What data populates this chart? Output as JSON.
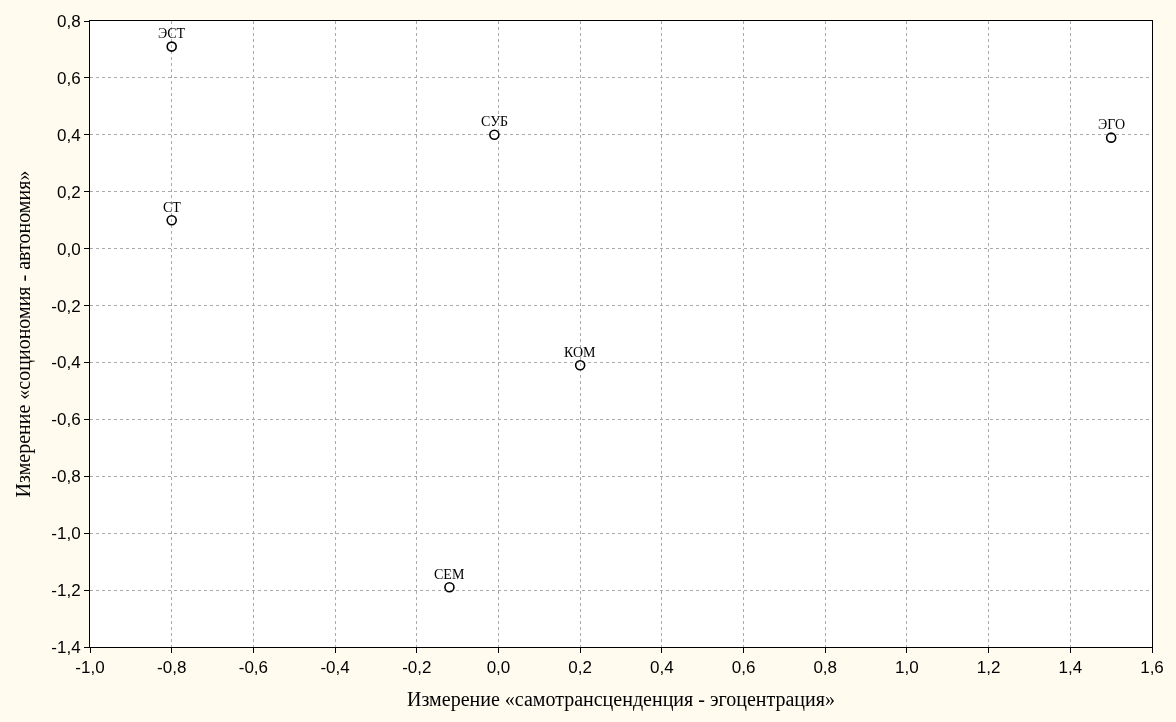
{
  "chart_data": {
    "type": "scatter",
    "xlabel": "Измерение «самотрансценденция - эгоцентрация»",
    "ylabel": "Измерение «социономия - автономия»",
    "x": [
      -0.8,
      -0.01,
      1.5,
      -0.8,
      0.2,
      -0.12
    ],
    "series": [
      {
        "color": "#000000",
        "values": [
          0.71,
          0.4,
          0.39,
          0.1,
          -0.41,
          -1.19
        ]
      }
    ],
    "marker": "circle",
    "grid": true,
    "xlim": [
      -1.0,
      1.6
    ],
    "ylim": [
      -1.4,
      0.8
    ],
    "xticks": [
      {
        "value": -1.0,
        "label": "-1,0"
      },
      {
        "value": -0.8,
        "label": "-0,8"
      },
      {
        "value": -0.6,
        "label": "-0,6"
      },
      {
        "value": -0.4,
        "label": "-0,4"
      },
      {
        "value": -0.2,
        "label": "-0,2"
      },
      {
        "value": 0.0,
        "label": "0,0"
      },
      {
        "value": 0.2,
        "label": "0,2"
      },
      {
        "value": 0.4,
        "label": "0,4"
      },
      {
        "value": 0.6,
        "label": "0,6"
      },
      {
        "value": 0.8,
        "label": "0,8"
      },
      {
        "value": 1.0,
        "label": "1,0"
      },
      {
        "value": 1.2,
        "label": "1,2"
      },
      {
        "value": 1.4,
        "label": "1,4"
      },
      {
        "value": 1.6,
        "label": "1,6"
      }
    ],
    "yticks": [
      {
        "value": -1.4,
        "label": "-1,4"
      },
      {
        "value": -1.2,
        "label": "-1,2"
      },
      {
        "value": -1.0,
        "label": "-1,0"
      },
      {
        "value": -0.8,
        "label": "-0,8"
      },
      {
        "value": -0.6,
        "label": "-0,6"
      },
      {
        "value": -0.4,
        "label": "-0,4"
      },
      {
        "value": -0.2,
        "label": "-0,2"
      },
      {
        "value": 0.0,
        "label": "0,0"
      },
      {
        "value": 0.2,
        "label": "0,2"
      },
      {
        "value": 0.4,
        "label": "0,4"
      },
      {
        "value": 0.6,
        "label": "0,6"
      },
      {
        "value": 0.8,
        "label": "0,8"
      }
    ],
    "annotations": [
      {
        "text": "ЭСТ",
        "x": -0.8,
        "y": 0.71
      },
      {
        "text": "СУБ",
        "x": -0.01,
        "y": 0.4
      },
      {
        "text": "ЭГО",
        "x": 1.5,
        "y": 0.39
      },
      {
        "text": "СТ",
        "x": -0.8,
        "y": 0.1
      },
      {
        "text": "КОМ",
        "x": 0.2,
        "y": -0.41
      },
      {
        "text": "СЕМ",
        "x": -0.12,
        "y": -1.19
      }
    ]
  }
}
